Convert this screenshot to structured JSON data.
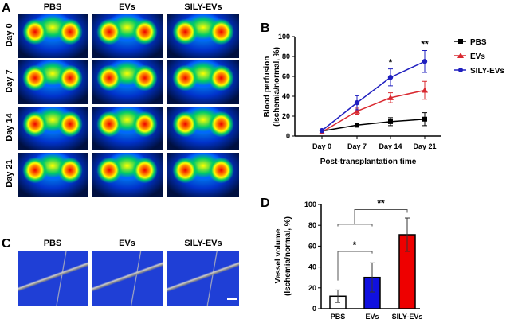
{
  "panels": {
    "a": "A",
    "b": "B",
    "c": "C",
    "d": "D"
  },
  "groups": [
    "PBS",
    "EVs",
    "SILY-EVs"
  ],
  "days": [
    "Day 0",
    "Day 7",
    "Day 14",
    "Day 21"
  ],
  "colors": {
    "PBS": "#000000",
    "EVs": "#d9282f",
    "SILY-EVs": "#1f1fbf",
    "bar_PBS": "#ffffff",
    "bar_EVs": "#1010e0",
    "bar_SILY": "#ee0000"
  },
  "chart_data": [
    {
      "type": "line",
      "xlabel": "Post-transplantation time",
      "ylabel": "Blood perfusion (Ischemia/normal, %)",
      "categories": [
        "Day 0",
        "Day 7",
        "Day 14",
        "Day 21"
      ],
      "ylim": [
        0,
        100
      ],
      "yticks": [
        0,
        20,
        40,
        60,
        80,
        100
      ],
      "legend": "right",
      "series": [
        {
          "name": "PBS",
          "marker": "square",
          "values": [
            5,
            11,
            14.5,
            17
          ],
          "errors": [
            1,
            2,
            4,
            6.5
          ]
        },
        {
          "name": "EVs",
          "marker": "triangle",
          "values": [
            4,
            25,
            38.5,
            46
          ],
          "errors": [
            1,
            3,
            5,
            9
          ]
        },
        {
          "name": "SILY-EVs",
          "marker": "circle",
          "values": [
            5.5,
            33.5,
            59,
            75
          ],
          "errors": [
            1,
            7,
            8.5,
            11
          ]
        }
      ],
      "annotations": [
        {
          "category": "Day 14",
          "text": "*"
        },
        {
          "category": "Day 21",
          "text": "**"
        }
      ]
    },
    {
      "type": "bar",
      "ylabel": "Vessel volume (Ischemia/normal, %)",
      "categories": [
        "PBS",
        "EVs",
        "SILY-EVs"
      ],
      "values": [
        12,
        30,
        71
      ],
      "errors": [
        6,
        14,
        16
      ],
      "ylim": [
        0,
        100
      ],
      "yticks": [
        0,
        20,
        40,
        60,
        80,
        100
      ],
      "annotations": [
        {
          "between": [
            "PBS",
            "EVs"
          ],
          "text": "*"
        },
        {
          "between": [
            "PBS+EVs",
            "SILY-EVs"
          ],
          "text": "**"
        }
      ]
    }
  ]
}
